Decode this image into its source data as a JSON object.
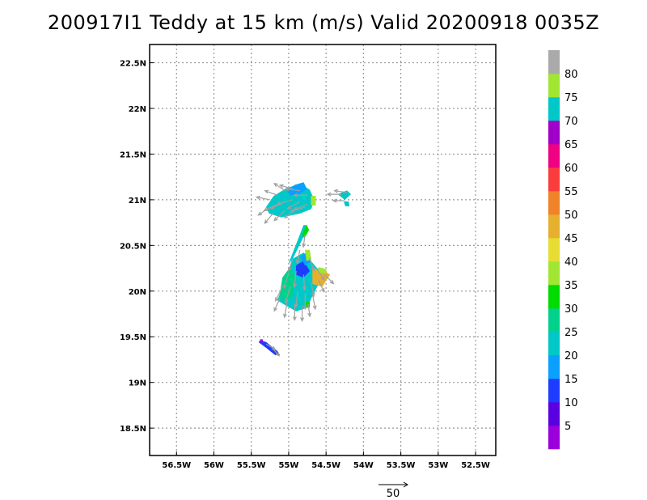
{
  "chart_data": {
    "type": "heatmap",
    "title": "200917I1 Teddy at 15 km (m/s) Valid 20200918 0035Z",
    "xlim": [
      -56.86,
      -52.23
    ],
    "ylim": [
      18.2,
      22.7
    ],
    "x_ticks": [
      {
        "value": -56.5,
        "label": "56.5W"
      },
      {
        "value": -56.0,
        "label": "56W"
      },
      {
        "value": -55.5,
        "label": "55.5W"
      },
      {
        "value": -55.0,
        "label": "55W"
      },
      {
        "value": -54.5,
        "label": "54.5W"
      },
      {
        "value": -54.0,
        "label": "54W"
      },
      {
        "value": -53.5,
        "label": "53.5W"
      },
      {
        "value": -53.0,
        "label": "53W"
      },
      {
        "value": -52.5,
        "label": "52.5W"
      }
    ],
    "y_ticks": [
      {
        "value": 18.5,
        "label": "18.5N"
      },
      {
        "value": 19.0,
        "label": "19N"
      },
      {
        "value": 19.5,
        "label": "19.5N"
      },
      {
        "value": 20.0,
        "label": "20N"
      },
      {
        "value": 20.5,
        "label": "20.5N"
      },
      {
        "value": 21.0,
        "label": "21N"
      },
      {
        "value": 21.5,
        "label": "21.5N"
      },
      {
        "value": 22.0,
        "label": "22N"
      },
      {
        "value": 22.5,
        "label": "22.5N"
      }
    ],
    "grid": true,
    "colorbar": {
      "position": "right",
      "bins": [
        {
          "min": 0,
          "max": 5,
          "color": "#9b00dc"
        },
        {
          "min": 5,
          "max": 10,
          "color": "#5a00e0"
        },
        {
          "min": 10,
          "max": 15,
          "color": "#1e3cff"
        },
        {
          "min": 15,
          "max": 20,
          "color": "#0aa0ff"
        },
        {
          "min": 20,
          "max": 25,
          "color": "#00c8c8"
        },
        {
          "min": 25,
          "max": 30,
          "color": "#00d28c"
        },
        {
          "min": 30,
          "max": 35,
          "color": "#00dc00"
        },
        {
          "min": 35,
          "max": 40,
          "color": "#a0e632"
        },
        {
          "min": 40,
          "max": 45,
          "color": "#e6dc32"
        },
        {
          "min": 45,
          "max": 50,
          "color": "#e6af2d"
        },
        {
          "min": 50,
          "max": 55,
          "color": "#f08228"
        },
        {
          "min": 55,
          "max": 60,
          "color": "#fa3c3c"
        },
        {
          "min": 60,
          "max": 65,
          "color": "#f00082"
        },
        {
          "min": 65,
          "max": 70,
          "color": "#a000c8"
        },
        {
          "min": 70,
          "max": 75,
          "color": "#00c8c8"
        },
        {
          "min": 75,
          "max": 80,
          "color": "#a0e632"
        },
        {
          "min": 80,
          "max": 85,
          "color": "#aaaaaa"
        }
      ],
      "labels": [
        "5",
        "10",
        "15",
        "20",
        "25",
        "30",
        "35",
        "40",
        "45",
        "50",
        "55",
        "60",
        "65",
        "70",
        "75",
        "80"
      ]
    },
    "wind_regions": [
      {
        "color": "#00c8c8",
        "points": [
          [
            -55.3,
            20.92
          ],
          [
            -55.2,
            21.04
          ],
          [
            -55.02,
            21.13
          ],
          [
            -54.84,
            21.17
          ],
          [
            -54.72,
            21.11
          ],
          [
            -54.66,
            21.0
          ],
          [
            -54.7,
            20.9
          ],
          [
            -54.85,
            20.85
          ],
          [
            -55.1,
            20.81
          ],
          [
            -55.26,
            20.85
          ]
        ]
      },
      {
        "color": "#0aa0ff",
        "points": [
          [
            -55.02,
            21.1
          ],
          [
            -54.92,
            21.16
          ],
          [
            -54.8,
            21.19
          ],
          [
            -54.76,
            21.12
          ],
          [
            -54.86,
            21.06
          ],
          [
            -54.98,
            21.05
          ]
        ]
      },
      {
        "color": "#a0e632",
        "points": [
          [
            -54.7,
            21.04
          ],
          [
            -54.64,
            21.04
          ],
          [
            -54.64,
            20.94
          ],
          [
            -54.7,
            20.94
          ]
        ]
      },
      {
        "color": "#00c8c8",
        "points": [
          [
            -54.34,
            21.06
          ],
          [
            -54.22,
            21.1
          ],
          [
            -54.17,
            21.06
          ],
          [
            -54.25,
            21.0
          ]
        ]
      },
      {
        "color": "#00c8c8",
        "points": [
          [
            -54.26,
            20.98
          ],
          [
            -54.2,
            20.98
          ],
          [
            -54.19,
            20.93
          ],
          [
            -54.24,
            20.93
          ]
        ]
      },
      {
        "color": "#00c8c8",
        "points": [
          [
            -54.95,
            20.35
          ],
          [
            -54.8,
            20.6
          ],
          [
            -54.75,
            20.72
          ],
          [
            -54.8,
            20.72
          ],
          [
            -54.88,
            20.55
          ],
          [
            -55.0,
            20.3
          ]
        ]
      },
      {
        "color": "#00dc00",
        "points": [
          [
            -54.82,
            20.62
          ],
          [
            -54.76,
            20.72
          ],
          [
            -54.73,
            20.67
          ],
          [
            -54.79,
            20.58
          ]
        ]
      },
      {
        "color": "#00c8c8",
        "points": [
          [
            -55.05,
            19.85
          ],
          [
            -55.15,
            19.9
          ],
          [
            -55.1,
            20.0
          ],
          [
            -55.0,
            20.2
          ],
          [
            -54.95,
            20.35
          ],
          [
            -54.8,
            20.42
          ],
          [
            -54.62,
            20.25
          ],
          [
            -54.5,
            20.2
          ],
          [
            -54.6,
            20.08
          ],
          [
            -54.7,
            19.92
          ],
          [
            -54.75,
            19.82
          ],
          [
            -54.9,
            19.78
          ]
        ]
      },
      {
        "color": "#00d28c",
        "points": [
          [
            -55.12,
            19.95
          ],
          [
            -55.08,
            20.15
          ],
          [
            -54.98,
            20.26
          ],
          [
            -54.9,
            20.15
          ],
          [
            -54.95,
            19.95
          ],
          [
            -55.05,
            19.88
          ]
        ]
      },
      {
        "color": "#1e3cff",
        "points": [
          [
            -54.9,
            20.28
          ],
          [
            -54.8,
            20.33
          ],
          [
            -54.72,
            20.22
          ],
          [
            -54.8,
            20.15
          ],
          [
            -54.9,
            20.18
          ]
        ]
      },
      {
        "color": "#0aa0ff",
        "points": [
          [
            -54.84,
            20.38
          ],
          [
            -54.76,
            20.42
          ],
          [
            -54.7,
            20.33
          ],
          [
            -54.78,
            20.28
          ]
        ]
      },
      {
        "color": "#e6af2d",
        "points": [
          [
            -54.68,
            20.25
          ],
          [
            -54.52,
            20.22
          ],
          [
            -54.45,
            20.18
          ],
          [
            -54.55,
            20.05
          ],
          [
            -54.68,
            20.08
          ]
        ]
      },
      {
        "color": "#a0e632",
        "points": [
          [
            -54.78,
            20.45
          ],
          [
            -54.72,
            20.45
          ],
          [
            -54.7,
            20.35
          ],
          [
            -54.76,
            20.33
          ]
        ]
      },
      {
        "color": "#a0e632",
        "points": [
          [
            -54.6,
            20.26
          ],
          [
            -54.5,
            20.24
          ],
          [
            -54.5,
            20.2
          ],
          [
            -54.6,
            20.2
          ]
        ]
      },
      {
        "color": "#00dc00",
        "points": [
          [
            -54.78,
            19.88
          ],
          [
            -54.72,
            19.88
          ],
          [
            -54.72,
            19.82
          ],
          [
            -54.78,
            19.82
          ]
        ]
      },
      {
        "color": "#1e3cff",
        "points": [
          [
            -55.38,
            19.46
          ],
          [
            -55.3,
            19.44
          ],
          [
            -55.15,
            19.34
          ],
          [
            -55.12,
            19.3
          ],
          [
            -55.18,
            19.3
          ],
          [
            -55.3,
            19.38
          ],
          [
            -55.4,
            19.44
          ]
        ]
      },
      {
        "color": "#9b00dc",
        "points": [
          [
            -55.38,
            19.47
          ],
          [
            -55.35,
            19.47
          ],
          [
            -55.35,
            19.44
          ],
          [
            -55.38,
            19.44
          ]
        ]
      }
    ],
    "wind_arrows": [
      {
        "lon": -55.25,
        "lat": 21.0,
        "u": -15,
        "v": 3
      },
      {
        "lon": -55.15,
        "lat": 21.05,
        "u": -14,
        "v": 5
      },
      {
        "lon": -55.05,
        "lat": 21.1,
        "u": -12,
        "v": 8
      },
      {
        "lon": -54.95,
        "lat": 21.12,
        "u": -14,
        "v": 4
      },
      {
        "lon": -54.85,
        "lat": 21.1,
        "u": -16,
        "v": 2
      },
      {
        "lon": -54.75,
        "lat": 21.05,
        "u": -15,
        "v": 0
      },
      {
        "lon": -55.25,
        "lat": 20.92,
        "u": -13,
        "v": -9
      },
      {
        "lon": -55.15,
        "lat": 20.95,
        "u": -15,
        "v": -7
      },
      {
        "lon": -55.05,
        "lat": 20.98,
        "u": -16,
        "v": -8
      },
      {
        "lon": -54.95,
        "lat": 21.0,
        "u": -17,
        "v": -5
      },
      {
        "lon": -54.85,
        "lat": 20.98,
        "u": -14,
        "v": -8
      },
      {
        "lon": -54.75,
        "lat": 20.95,
        "u": -15,
        "v": -6
      },
      {
        "lon": -55.2,
        "lat": 20.86,
        "u": -10,
        "v": -12
      },
      {
        "lon": -55.05,
        "lat": 20.88,
        "u": -12,
        "v": -11
      },
      {
        "lon": -54.9,
        "lat": 20.9,
        "u": -13,
        "v": -10
      },
      {
        "lon": -54.78,
        "lat": 20.92,
        "u": -16,
        "v": -5
      },
      {
        "lon": -54.3,
        "lat": 21.06,
        "u": -15,
        "v": 0
      },
      {
        "lon": -54.22,
        "lat": 21.08,
        "u": -14,
        "v": 2
      },
      {
        "lon": -54.26,
        "lat": 20.99,
        "u": -12,
        "v": 0
      },
      {
        "lon": -54.78,
        "lat": 20.62,
        "u": -2,
        "v": -14
      },
      {
        "lon": -54.85,
        "lat": 20.45,
        "u": -3,
        "v": -15
      },
      {
        "lon": -54.95,
        "lat": 20.35,
        "u": -4,
        "v": -13
      },
      {
        "lon": -54.72,
        "lat": 20.36,
        "u": 5,
        "v": -14
      },
      {
        "lon": -54.62,
        "lat": 20.24,
        "u": 8,
        "v": -12
      },
      {
        "lon": -54.52,
        "lat": 20.18,
        "u": 10,
        "v": -10
      },
      {
        "lon": -54.6,
        "lat": 20.12,
        "u": 6,
        "v": -13
      },
      {
        "lon": -55.0,
        "lat": 20.2,
        "u": -5,
        "v": -17
      },
      {
        "lon": -54.9,
        "lat": 20.22,
        "u": -2,
        "v": -18
      },
      {
        "lon": -54.8,
        "lat": 20.18,
        "u": 1,
        "v": -17
      },
      {
        "lon": -54.7,
        "lat": 20.1,
        "u": 3,
        "v": -16
      },
      {
        "lon": -55.08,
        "lat": 20.05,
        "u": -8,
        "v": -16
      },
      {
        "lon": -54.98,
        "lat": 20.05,
        "u": -5,
        "v": -18
      },
      {
        "lon": -54.88,
        "lat": 20.0,
        "u": -2,
        "v": -18
      },
      {
        "lon": -54.78,
        "lat": 19.98,
        "u": 0,
        "v": -18
      },
      {
        "lon": -54.68,
        "lat": 19.96,
        "u": 3,
        "v": -16
      },
      {
        "lon": -55.12,
        "lat": 19.92,
        "u": -6,
        "v": -14
      },
      {
        "lon": -55.02,
        "lat": 19.88,
        "u": -3,
        "v": -17
      },
      {
        "lon": -54.92,
        "lat": 19.86,
        "u": 0,
        "v": -18
      },
      {
        "lon": -54.82,
        "lat": 19.84,
        "u": 0,
        "v": -17
      },
      {
        "lon": -54.74,
        "lat": 19.86,
        "u": 2,
        "v": -14
      },
      {
        "lon": -55.3,
        "lat": 19.42,
        "u": 10,
        "v": -6
      },
      {
        "lon": -55.2,
        "lat": 19.36,
        "u": 6,
        "v": -7
      }
    ],
    "reference_vector": {
      "value": 50,
      "label": "50"
    }
  }
}
